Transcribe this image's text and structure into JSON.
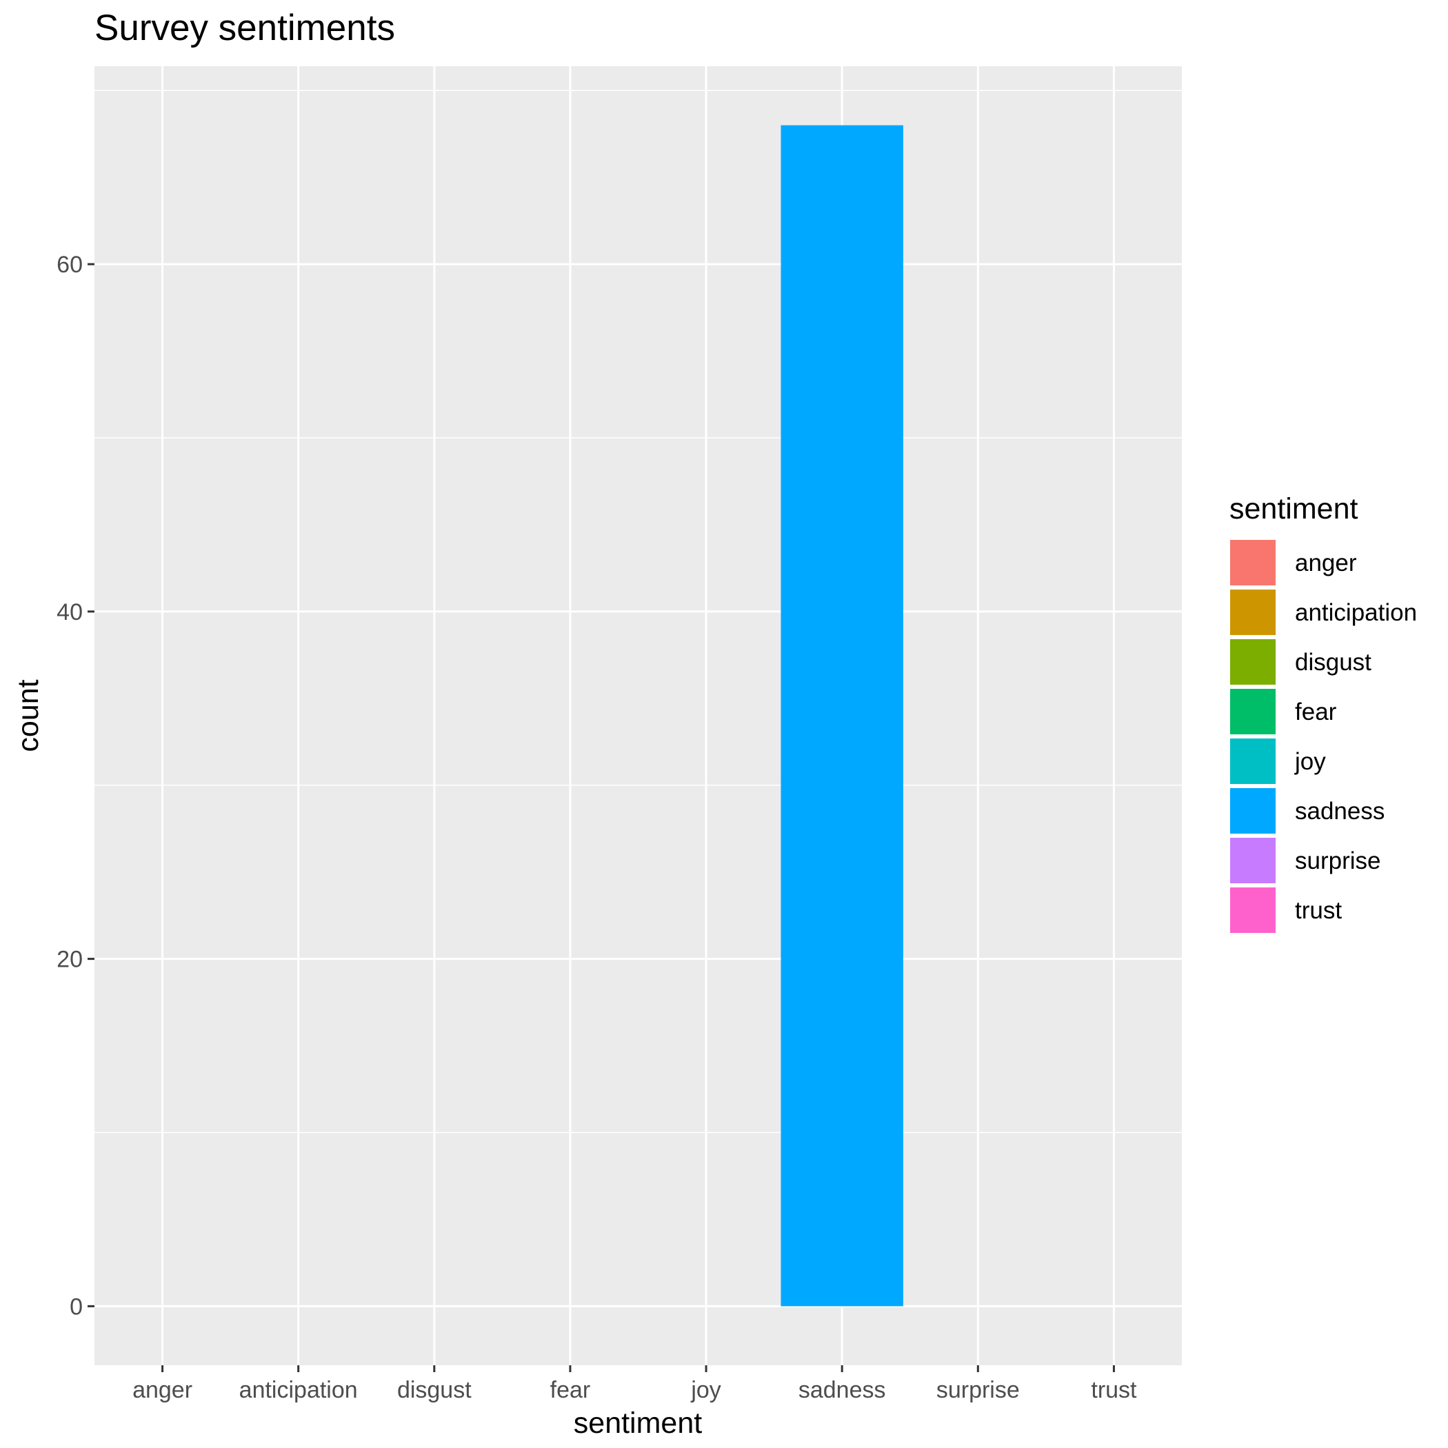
{
  "chart_data": {
    "type": "bar",
    "title": "Survey sentiments",
    "xlabel": "sentiment",
    "ylabel": "count",
    "categories": [
      "anger",
      "anticipation",
      "disgust",
      "fear",
      "joy",
      "sadness",
      "surprise",
      "trust"
    ],
    "values": [
      0,
      0,
      0,
      0,
      0,
      68,
      0,
      0
    ],
    "colors": [
      "#F8766D",
      "#CD9600",
      "#7CAE00",
      "#00BE67",
      "#00BFC4",
      "#00A9FF",
      "#C77CFF",
      "#FF61CC"
    ],
    "ylim": [
      -3.4,
      71.4
    ],
    "yticks": [
      0,
      20,
      40,
      60
    ],
    "grid": true,
    "panel_background": "#EBEBEB",
    "legend": {
      "title": "sentiment",
      "position": "right",
      "entries": [
        "anger",
        "anticipation",
        "disgust",
        "fear",
        "joy",
        "sadness",
        "surprise",
        "trust"
      ]
    }
  }
}
